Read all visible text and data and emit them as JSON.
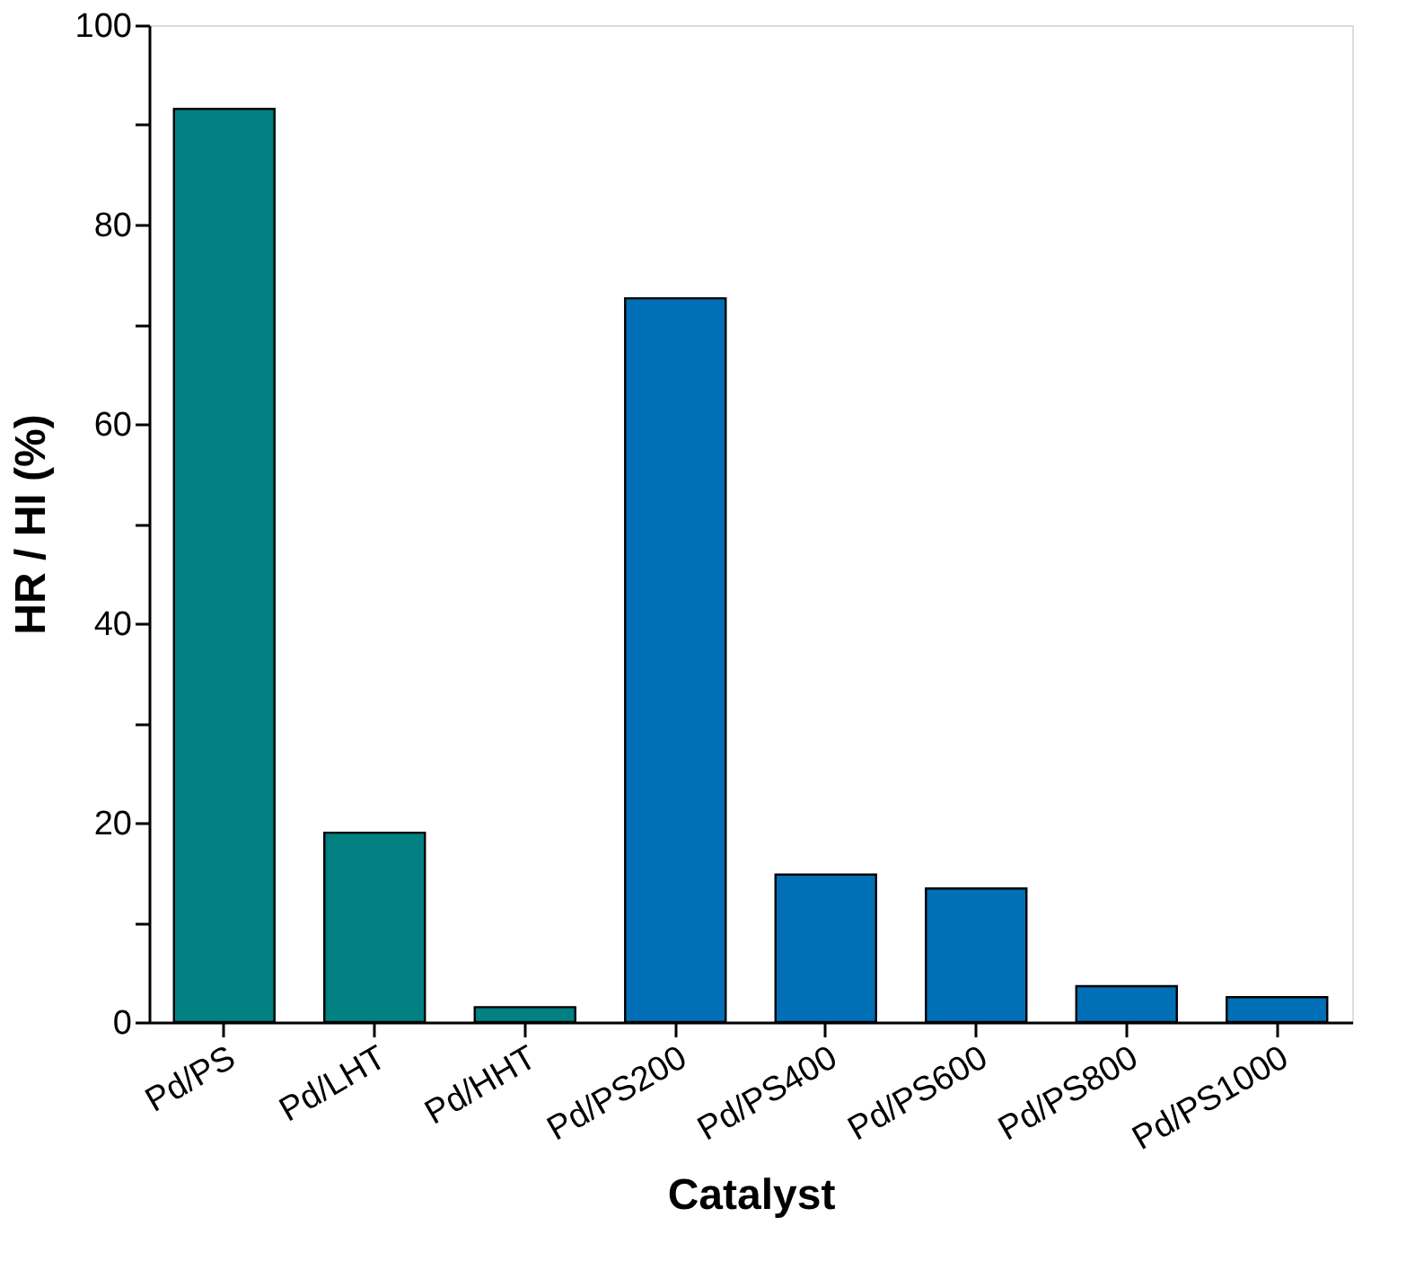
{
  "chart_data": {
    "type": "bar",
    "xlabel": "Catalyst",
    "ylabel": "HR / HI (%)",
    "categories": [
      "Pd/PS",
      "Pd/LHT",
      "Pd/HHT",
      "Pd/PS200",
      "Pd/PS400",
      "Pd/PS600",
      "Pd/PS800",
      "Pd/PS1000"
    ],
    "values": [
      91.6,
      19.0,
      1.5,
      72.6,
      14.8,
      13.4,
      3.6,
      2.5
    ],
    "colors": [
      "#008080",
      "#008080",
      "#008080",
      "#006fb5",
      "#006fb5",
      "#006fb5",
      "#006fb5",
      "#006fb5"
    ],
    "ylim": [
      0,
      100
    ],
    "yticks": [
      0,
      {
        "value": 10,
        "label": null
      },
      20,
      {
        "value": 30,
        "label": null
      },
      40,
      {
        "value": 50,
        "label": null
      },
      60,
      {
        "value": 70,
        "label": null
      },
      80,
      {
        "value": 90,
        "label": null
      },
      100
    ],
    "grid": false,
    "legend": false
  }
}
